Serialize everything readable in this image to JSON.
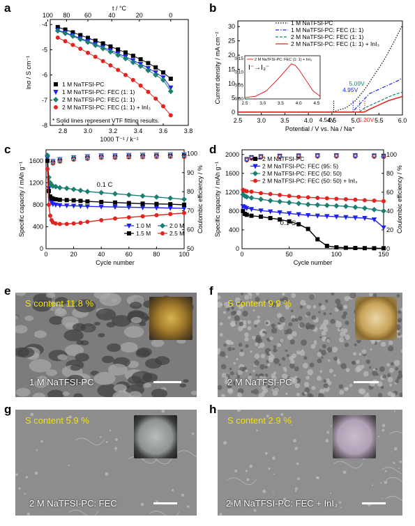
{
  "panel_labels": {
    "a": "a",
    "b": "b",
    "c": "c",
    "d": "d",
    "e": "e",
    "f": "f",
    "g": "g",
    "h": "h"
  },
  "chart_data": [
    {
      "id": "a",
      "type": "scatter",
      "xlabel": "1000 T⁻¹ / k⁻¹",
      "ylabel": "lnσ / S cm⁻¹",
      "top_xlabel": "t / °C",
      "top_ticks": [
        "100",
        "80",
        "60",
        "40",
        "20",
        "0"
      ],
      "xlim": [
        2.7,
        3.8
      ],
      "ylim": [
        -8,
        -3.8
      ],
      "xticks": [
        "2.8",
        "3.0",
        "3.2",
        "3.4",
        "3.6",
        "3.8"
      ],
      "yticks": [
        "-4",
        "-5",
        "-6",
        "-7",
        "-8"
      ],
      "x": [
        2.76,
        2.82,
        2.88,
        2.94,
        3.0,
        3.06,
        3.12,
        3.18,
        3.24,
        3.3,
        3.36,
        3.42,
        3.48,
        3.54,
        3.6,
        3.66
      ],
      "series": [
        {
          "name": "1 M NaTFSI-PC",
          "color": "#000000",
          "marker": "square",
          "values": [
            -4.1,
            -4.2,
            -4.31,
            -4.42,
            -4.53,
            -4.64,
            -4.75,
            -4.87,
            -4.99,
            -5.11,
            -5.24,
            -5.38,
            -5.53,
            -5.7,
            -5.9,
            -6.15
          ]
        },
        {
          "name": "1 M NaTFSI-PC: FEC (1: 1)",
          "color": "#1e22ee",
          "marker": "triangle-down",
          "values": [
            -4.22,
            -4.32,
            -4.43,
            -4.55,
            -4.66,
            -4.78,
            -4.9,
            -5.02,
            -5.15,
            -5.28,
            -5.42,
            -5.57,
            -5.73,
            -5.9,
            -6.1,
            -6.5
          ]
        },
        {
          "name": "2 M NaTFSI-PC: FEC (1: 1)",
          "color": "#1a7f73",
          "marker": "diamond",
          "values": [
            -4.25,
            -4.35,
            -4.46,
            -4.58,
            -4.7,
            -4.82,
            -4.95,
            -5.08,
            -5.21,
            -5.35,
            -5.5,
            -5.65,
            -5.82,
            -6.0,
            -6.2,
            -6.65
          ]
        },
        {
          "name": "2 M NaTFSI-PC: FEC (1: 1) + InI₃",
          "color": "#e3241e",
          "marker": "circle",
          "values": [
            -4.52,
            -4.66,
            -4.81,
            -4.96,
            -5.12,
            -5.28,
            -5.45,
            -5.62,
            -5.8,
            -6.0,
            -6.2,
            -6.42,
            -6.67,
            -6.94,
            -7.24,
            -7.6
          ]
        }
      ],
      "note": "* Solid lines represent VTF fitting results."
    },
    {
      "id": "b",
      "type": "line",
      "xlabel": "Potential / V vs. Na / Na⁺",
      "ylabel": "Current density / mA cm⁻²",
      "xlim": [
        2.5,
        6.0
      ],
      "ylim": [
        -1,
        32
      ],
      "xticks": [
        "2.5",
        "3.0",
        "3.5",
        "4.0",
        "4.5",
        "5.0",
        "5.5",
        "6.0"
      ],
      "yticks": [
        "0",
        "5",
        "10",
        "15",
        "20",
        "25",
        "30"
      ],
      "series": [
        {
          "name": "1 M NaTFSI-PC",
          "color": "#000000",
          "style": "dotted",
          "x": [
            2.5,
            4.4,
            4.54,
            4.8,
            5.0,
            5.2,
            5.4,
            5.6,
            5.8,
            6.0
          ],
          "values": [
            0,
            0,
            0.2,
            1.5,
            4,
            8,
            13,
            18,
            24,
            30.5
          ]
        },
        {
          "name": "1 M NaTFSI-PC: FEC (1: 1)",
          "color": "#1e22ee",
          "style": "dashdot",
          "x": [
            2.5,
            4.9,
            4.95,
            5.1,
            5.3,
            5.5,
            5.7,
            5.9,
            6.0
          ],
          "values": [
            0,
            0,
            0.2,
            3,
            6.5,
            8,
            9.5,
            11,
            12
          ]
        },
        {
          "name": "2 M NaTFSI-PC: FEC (1: 1)",
          "color": "#1a7f73",
          "style": "dashed",
          "x": [
            2.5,
            5.05,
            5.09,
            5.2,
            5.4,
            5.6,
            5.8,
            6.0
          ],
          "values": [
            0,
            0,
            0.2,
            1.5,
            3,
            4.5,
            6,
            7
          ]
        },
        {
          "name": "2 M NaTFSI-PC: FEC (1: 1) + InI₃",
          "color": "#e3241e",
          "style": "solid",
          "x": [
            2.5,
            5.15,
            5.2,
            5.3,
            5.5,
            5.7,
            5.9,
            6.0
          ],
          "values": [
            0,
            0,
            0.1,
            1,
            2.5,
            4,
            5,
            5.5
          ]
        }
      ],
      "annotations": [
        "5.09V",
        "4.95V",
        "4.54V",
        "5.20V"
      ],
      "inset": {
        "legend": "2 M NaTFSI-PC: FEC (1: 1) + InI₃",
        "title": "I⁻→I₃⁻",
        "xlim": [
          2.5,
          4.6
        ],
        "ylim": [
          0,
          0.16
        ],
        "xticks": [
          "2.5",
          "3.0",
          "3.5",
          "4.0",
          "4.5"
        ],
        "yticks": [
          "0.00",
          "0.05",
          "0.10",
          "0.15"
        ],
        "x": [
          2.5,
          2.8,
          3.1,
          3.4,
          3.6,
          3.8,
          3.9,
          4.0,
          4.2,
          4.4,
          4.6
        ],
        "values": [
          0.005,
          0.01,
          0.03,
          0.07,
          0.1,
          0.13,
          0.125,
          0.11,
          0.07,
          0.03,
          0.01
        ]
      }
    },
    {
      "id": "c",
      "type": "scatter",
      "xlabel": "Cycle number",
      "ylabel": "Specific capacity / mAh g⁻¹",
      "ylabel_right": "Coulombic efficiency / %",
      "xlim": [
        0,
        100
      ],
      "ylim": [
        0,
        1800
      ],
      "ylim_right": [
        50,
        102
      ],
      "xticks": [
        "0",
        "20",
        "40",
        "60",
        "80",
        "100"
      ],
      "yticks": [
        "0",
        "400",
        "800",
        "1200",
        "1600"
      ],
      "yticks_right": [
        "50",
        "60",
        "70",
        "80",
        "90",
        "100"
      ],
      "annotation": "0.1 C",
      "x": [
        1,
        2,
        3,
        4,
        5,
        7,
        10,
        15,
        20,
        25,
        30,
        40,
        50,
        60,
        70,
        80,
        90,
        100
      ],
      "series": [
        {
          "name": "1.0 M",
          "color": "#1e22ee",
          "marker": "triangle-down",
          "values": [
            1650,
            1100,
            900,
            840,
            810,
            800,
            790,
            785,
            780,
            775,
            770,
            765,
            760,
            755,
            750,
            745,
            740,
            735
          ]
        },
        {
          "name": "2.0 M",
          "color": "#1a7f73",
          "marker": "diamond",
          "values": [
            1700,
            1300,
            1200,
            1160,
            1140,
            1130,
            1110,
            1100,
            1080,
            1060,
            1040,
            1020,
            1000,
            980,
            960,
            940,
            920,
            900
          ]
        },
        {
          "name": "1.5 M",
          "color": "#000000",
          "marker": "square",
          "values": [
            1600,
            1050,
            950,
            920,
            910,
            900,
            890,
            885,
            880,
            870,
            860,
            850,
            840,
            830,
            820,
            815,
            810,
            800
          ]
        },
        {
          "name": "2.5 M",
          "color": "#e3241e",
          "marker": "circle",
          "values": [
            1450,
            800,
            600,
            520,
            480,
            460,
            450,
            450,
            460,
            470,
            490,
            520,
            550,
            570,
            590,
            610,
            630,
            650
          ]
        }
      ],
      "ce_x": [
        5,
        10,
        20,
        30,
        40,
        50,
        60,
        70,
        80,
        90,
        100
      ],
      "ce_values": [
        96,
        97,
        98,
        98.5,
        99,
        99,
        99.2,
        99.3,
        99.4,
        99.5,
        99.5
      ]
    },
    {
      "id": "d",
      "type": "scatter",
      "xlabel": "Cycle number",
      "ylabel": "Specific capacity / mAh g⁻¹",
      "ylabel_right": "Coulombic efficiency / %",
      "xlim": [
        0,
        150
      ],
      "ylim": [
        0,
        2100
      ],
      "ylim_right": [
        0,
        105
      ],
      "xticks": [
        "0",
        "50",
        "100",
        "150"
      ],
      "yticks": [
        "0",
        "400",
        "800",
        "1200",
        "1600",
        "2000"
      ],
      "yticks_right": [
        "0",
        "20",
        "40",
        "60",
        "80",
        "100"
      ],
      "annotation": "0.1 C",
      "x": [
        1,
        3,
        5,
        10,
        20,
        30,
        40,
        50,
        60,
        70,
        80,
        90,
        100,
        110,
        120,
        130,
        140,
        150
      ],
      "series": [
        {
          "name": "2 M NaTFSI-PC",
          "color": "#000000",
          "marker": "square",
          "values": [
            800,
            740,
            720,
            700,
            680,
            650,
            620,
            580,
            520,
            420,
            200,
            60,
            30,
            20,
            15,
            12,
            10,
            10
          ]
        },
        {
          "name": "2 M NaTFSI-PC: FEC (95: 5)",
          "color": "#1e22ee",
          "marker": "triangle-down",
          "values": [
            900,
            880,
            860,
            840,
            810,
            790,
            770,
            750,
            730,
            710,
            700,
            690,
            680,
            670,
            660,
            650,
            620,
            450
          ]
        },
        {
          "name": "2 M NaTFSI-PC: FEC (50: 50)",
          "color": "#1a7f73",
          "marker": "diamond",
          "values": [
            1150,
            1120,
            1100,
            1080,
            1050,
            1020,
            1000,
            980,
            960,
            940,
            930,
            920,
            910,
            900,
            880,
            860,
            830,
            800
          ]
        },
        {
          "name": "2 M NaTFSI-PC: FEC (50: 50) + InI₃",
          "color": "#e3241e",
          "marker": "circle",
          "values": [
            1250,
            1230,
            1220,
            1210,
            1180,
            1160,
            1140,
            1120,
            1100,
            1090,
            1080,
            1070,
            1060,
            1050,
            1040,
            1030,
            1020,
            1010
          ]
        }
      ],
      "ce_x": [
        5,
        10,
        20,
        40,
        60,
        80,
        100,
        120,
        140,
        150
      ],
      "ce_values": [
        95,
        97,
        98,
        98.5,
        98.8,
        99,
        99,
        99,
        98.8,
        98.5
      ]
    }
  ],
  "sem_images": [
    {
      "id": "e",
      "s_content": "S content 11.8 %",
      "label": "1 M NaTFSI-PC",
      "tone": "coarse"
    },
    {
      "id": "f",
      "s_content": "S content 9.9 %",
      "label": "2 M NaTFSI-PC",
      "tone": "grainy"
    },
    {
      "id": "g",
      "s_content": "S content 5.9 %",
      "label": "2 M NaTFSI-PC: FEC",
      "tone": "smooth"
    },
    {
      "id": "h",
      "s_content": "S content 2.9 %",
      "label": "2 M NaTFSI-PC: FEC + InI₃",
      "tone": "smooth-dots"
    }
  ]
}
